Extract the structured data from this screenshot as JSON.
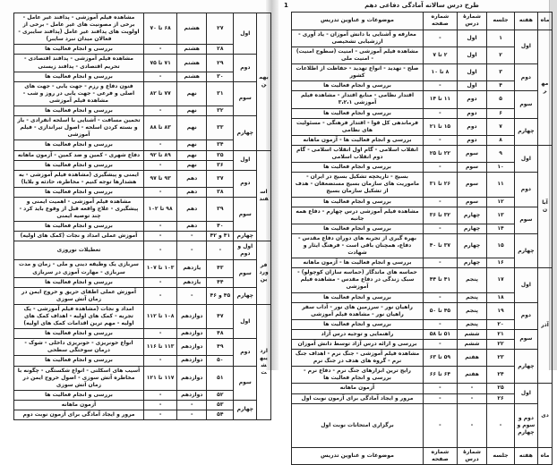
{
  "document_title": "طرح درس سالانه آمادگی دفاعی دهم",
  "page_marker": "1",
  "columns": [
    "ماه",
    "هفته",
    "جلسه",
    "شمارهٔ درس",
    "شماره صفحه",
    "موضوعات و عناوین تدریس"
  ],
  "pages": [
    {
      "side": "right",
      "has_title": true,
      "has_header": true,
      "has_footer_header": true,
      "rows": [
        {
          "month": "مهر",
          "month_span": 8,
          "week": "اول",
          "week_span": 2,
          "session": "۱",
          "lesson": "اول",
          "pages": "-",
          "topic": "معارفه و آشنایی با دانش آموزان - یاد آوری - ارزشیابی تشخیصی"
        },
        {
          "session": "۲",
          "lesson": "اول",
          "pages": "۲ تا ۷",
          "topic": "مشاهده فیلم آموزشی - امنیت (سطوح امنیت) - امنیت ملی"
        },
        {
          "week": "دوم",
          "week_span": 2,
          "session": "۳",
          "lesson": "اول",
          "pages": "۸ تا ۱۰",
          "topic": "صلح - تهدید - انواع تهدید - حفاظت از اطلاعات کشور"
        },
        {
          "session": "۴",
          "lesson": "اول",
          "pages": "-",
          "topic": "بررسی و انجام فعالیت ها"
        },
        {
          "week": "سوم",
          "week_span": 2,
          "session": "۵",
          "lesson": "دوم",
          "pages": "۱۱ تا ۱۴",
          "topic": "اقتدار نظامی - منابع اقتدار - مشاهده فیلم آموزشی ۳،۲،۱"
        },
        {
          "session": "۶",
          "lesson": "دوم",
          "pages": "-",
          "topic": "بررسی و انجام فعالیت ها"
        },
        {
          "week": "چهارم",
          "week_span": 2,
          "session": "۷",
          "lesson": "دوم",
          "pages": "۱۵ تا ۲۱",
          "topic": "فرماندهی کل قوا - اقتدار فرهنگی - مسئولیت های نظامی"
        },
        {
          "session": "۸",
          "lesson": "دوم",
          "pages": "-",
          "topic": "بررسی و انجام فعالیت ها - آزمون ماهانه"
        },
        {
          "month": "آبان",
          "month_span": 8,
          "week": "اول",
          "week_span": 2,
          "session": "۹",
          "lesson": "سوم",
          "pages": "۲۲ تا ۲۵",
          "topic": "انقلاب اسلامی - گام اول انقلاب اسلامی - گام دوم انقلاب اسلامی"
        },
        {
          "session": "۱۰",
          "lesson": "سوم",
          "pages": "-",
          "topic": "بررسی و انجام فعالیت ها"
        },
        {
          "week": "دوم",
          "week_span": 2,
          "session": "۱۱",
          "lesson": "سوم",
          "pages": "۲۶ تا ۳۱",
          "topic": "بسیج - تاریخچه تشکیل بسیج در ایران - ماموریت های سازمان بسیج مستضعفان - هدف از تشکیل سازمان بسیج"
        },
        {
          "session": "۱۲",
          "lesson": "سوم",
          "pages": "-",
          "topic": "بررسی و انجام فعالیت ها"
        },
        {
          "week": "سوم",
          "week_span": 2,
          "session": "۱۳",
          "lesson": "چهارم",
          "pages": "۳۲ تا ۳۶",
          "topic": "مشاهده فیلم آموزشی درس چهارم - دفاع همه جانبه"
        },
        {
          "session": "۱۴",
          "lesson": "چهارم",
          "pages": "-",
          "topic": "بررسی و انجام فعالیت ها"
        },
        {
          "week": "چهارم",
          "week_span": 2,
          "session": "۱۵",
          "lesson": "چهارم",
          "pages": "۳۷ تا ۴۰",
          "topic": "بهره گیری از تجربه های دوران دفاع مقدس - دفاع، همچنان باقی است - فرهنگ ایثار و شهادت"
        },
        {
          "session": "۱۶",
          "lesson": "چهارم",
          "pages": "-",
          "topic": "بررسی و انجام فعالیت ها - آزمون ماهانه"
        },
        {
          "month": "آذر",
          "month_span": 8,
          "week": "اول",
          "week_span": 2,
          "session": "۱۷",
          "lesson": "پنجم",
          "pages": "۴۱ تا ۴۴",
          "topic": "حماسه های ماندگار (حماسه سازان کوچولو) - سبک زندگی در دفاع مقدس - مشاهده فیلم آموزشی"
        },
        {
          "session": "۱۸",
          "lesson": "پنجم",
          "pages": "-",
          "topic": "بررسی و انجام فعالیت ها"
        },
        {
          "week": "دوم",
          "week_span": 2,
          "session": "۱۹",
          "lesson": "پنجم",
          "pages": "۴۵ تا ۵۰",
          "topic": "راهیان نور - سرزمین های نور - آداب سفر راهیان نور - مشاهده فیلم آموزشی"
        },
        {
          "session": "۲۰",
          "lesson": "پنجم",
          "pages": "-",
          "topic": "بررسی و انجام فعالیت ها"
        },
        {
          "week": "سوم",
          "week_span": 2,
          "session": "۲۱",
          "lesson": "ششم",
          "pages": "۵۱ تا ۵۸",
          "topic": "راهنمایی و توجیه درس آزاد"
        },
        {
          "session": "۲۲",
          "lesson": "ششم",
          "pages": "-",
          "topic": "بررسی و ارائه درس آزاد توسط دانش آموزان"
        },
        {
          "week": "چهارم",
          "week_span": 2,
          "session": "۲۳",
          "lesson": "هفتم",
          "pages": "۵۹ تا ۶۳",
          "topic": "مشاهده فیلم آموزشی - جنگ نرم - اهداف جنگ نرم - گروه های هدف در جنگ نرم"
        },
        {
          "session": "۲۴",
          "lesson": "هفتم",
          "pages": "۶۴ تا ۶۶",
          "topic": "رایج ترین ابزارهای جنگ نرم - دفاع نرم - بررسی و انجام فعالیت ها"
        },
        {
          "month": "دی",
          "month_span": 3,
          "week": "اول",
          "week_span": 2,
          "session": "۲۵",
          "lesson": "-",
          "pages": "-",
          "topic": "آزمون ماهانه"
        },
        {
          "session": "۲۶",
          "lesson": "-",
          "pages": "-",
          "topic": "مرور و ایجاد آمادگی برای آزمون نوبت اول"
        },
        {
          "week": "دوم و سوم و چهارم",
          "week_span": 1,
          "session": "-",
          "lesson": "-",
          "pages": "-",
          "topic": "برگزاری امتحانات نوبت اول",
          "size": "tall"
        }
      ]
    },
    {
      "side": "left",
      "has_title": false,
      "has_header": false,
      "has_footer_header": false,
      "rows": [
        {
          "month": "بهمن",
          "month_span": 8,
          "week": "اول",
          "week_span": 2,
          "session": "۲۷",
          "lesson": "هشتم",
          "pages": "۶۸ تا ۷۰",
          "topic": "مشاهده فیلم آموزشی - پدافند غیر عامل - برخی از مصونیت های غیر عامل - برخی از اولویت های پدافند غیر عامل (پدافند سایبری - فعالان میدان نبرد سایبر)"
        },
        {
          "session": "۲۸",
          "lesson": "هشتم",
          "pages": "-",
          "topic": "بررسی و انجام فعالیت ها"
        },
        {
          "week": "دوم",
          "week_span": 2,
          "session": "۲۹",
          "lesson": "هشتم",
          "pages": "۷۱ تا ۷۵",
          "topic": "مشاهده فیلم آموزشی - پدافند اقتصادی - تحریم اقتصادی - پدافند زیستی"
        },
        {
          "session": "۳۰",
          "lesson": "هشتم",
          "pages": "-",
          "topic": "بررسی و انجام فعالیت ها"
        },
        {
          "week": "سوم",
          "week_span": 2,
          "session": "۳۱",
          "lesson": "نهم",
          "pages": "۷۷ تا ۸۲",
          "topic": "فنون دفاع و رزم - جهت یابی - جهت های اصلی و فرعی - جهت یابی در روز و شب - مشاهده فیلم آموزشی"
        },
        {
          "session": "۳۲",
          "lesson": "نهم",
          "pages": "-",
          "topic": "بررسی و انجام فعالیت ها"
        },
        {
          "week": "چهارم",
          "week_span": 2,
          "session": "۳۳",
          "lesson": "نهم",
          "pages": "۸۳ تا ۸۸",
          "topic": "تخمین مسافت - آشنایی با اسلحه انفرادی - باز و بسته کردن اسلحه - اصول تیراندازی - فیلم آموزشی"
        },
        {
          "session": "۳۴",
          "lesson": "نهم",
          "pages": "-",
          "topic": "بررسی و انجام فعالیت ها"
        },
        {
          "month": "اسفند",
          "month_span": 7,
          "week": "اول",
          "week_span": 2,
          "session": "۳۵",
          "lesson": "نهم",
          "pages": "۸۹ تا ۹۲",
          "topic": "دفاع شهری - کمین و ضد کمین - آزمون ماهانه"
        },
        {
          "session": "۳۶",
          "lesson": "نهم",
          "pages": "-",
          "topic": "بررسی و انجام فعالیت ها"
        },
        {
          "week": "دوم",
          "week_span": 2,
          "session": "۳۷",
          "lesson": "دهم",
          "pages": "۹۳ تا ۹۷",
          "topic": "ایمنی و پیشگیری (مشاهده فیلم آموزشی - به هشدارها توجه کنیم - مخاطره، حادثه و بلایا)"
        },
        {
          "session": "۳۸",
          "lesson": "دهم",
          "pages": "-",
          "topic": "بررسی و انجام فعالیت ها"
        },
        {
          "week": "سوم",
          "week_span": 2,
          "session": "۳۹",
          "lesson": "دهم",
          "pages": "۹۸ تا ۱۰۲",
          "topic": "مشاهده فیلم آموزشی - اهمیت ایمنی و پیشگیری - علاج واقعه قبل از وقوع باید کرد - چند توصیه ایمنی"
        },
        {
          "session": "۴۰",
          "lesson": "دهم",
          "pages": "-",
          "topic": "بررسی و انجام فعالیت ها"
        },
        {
          "week": "چهارم",
          "week_span": 1,
          "session": "۴۱ و ۴۲",
          "lesson": "-",
          "pages": "-",
          "topic": "آموزش عملی امداد و نجات (کمک های اولیه)"
        },
        {
          "month": "فروردین",
          "month_span": 4,
          "week": "اول و دوم",
          "week_span": 1,
          "session": "-",
          "lesson": "-",
          "pages": "-",
          "topic": "تعطیلات نوروزی",
          "size": "med"
        },
        {
          "week": "سوم",
          "week_span": 2,
          "session": "۴۳",
          "lesson": "یازدهم",
          "pages": "۱۰۳ تا ۱۰۷",
          "topic": "سربازی یک وظیفه دینی و ملی - زمان و مدت سربازی - مهارت آموزی در سربازی"
        },
        {
          "session": "۴۴",
          "lesson": "یازدهم",
          "pages": "-",
          "topic": "بررسی و انجام فعالیت ها"
        },
        {
          "week": "چهارم",
          "week_span": 1,
          "session": "۴۵ و ۴۶",
          "lesson": "-",
          "pages": "-",
          "topic": "آموزش عملی اطفای حریق و خروج ایمن در زمان آتش سوزی"
        },
        {
          "month": "اردیبهشت",
          "month_span": 8,
          "week": "اول",
          "week_span": 2,
          "session": "۴۷",
          "lesson": "دوازدهم",
          "pages": "۱۰۸ تا ۱۱۲",
          "topic": "امداد و نجات (مشاهده فیلم آموزشی - یک تجربه - کمک های اولیه - اهداف کمک های اولیه - مهم ترین اقدامات کمک های اولیه)"
        },
        {
          "session": "۴۸",
          "lesson": "دوازدهم",
          "pages": "-",
          "topic": "بررسی و انجام فعالیت ها"
        },
        {
          "week": "دوم",
          "week_span": 2,
          "session": "۴۹",
          "lesson": "دوازدهم",
          "pages": "۱۱۳ تا ۱۱۶",
          "topic": "انواع خونریزی - خونریزی داخلی - شوک - درمان سوختگی سطحی"
        },
        {
          "session": "۵۰",
          "lesson": "دوازدهم",
          "pages": "-",
          "topic": "بررسی و انجام فعالیت ها"
        },
        {
          "week": "سوم",
          "week_span": 2,
          "session": "۵۱",
          "lesson": "دوازدهم",
          "pages": "۱۱۷ تا ۱۲۱",
          "topic": "آسیب های اسکلتی - انواع شکستگی - چگونه با مخاطره آتش سوزی - اصول خروج ایمن در زمان آتش سوزی"
        },
        {
          "session": "۵۲",
          "lesson": "دوازدهم",
          "pages": "-",
          "topic": "بررسی و انجام فعالیت ها"
        },
        {
          "week": "چهارم",
          "week_span": 2,
          "session": "۵۳",
          "lesson": "-",
          "pages": "-",
          "topic": "آزمون ماهانه"
        },
        {
          "session": "۵۴",
          "lesson": "-",
          "pages": "-",
          "topic": "مرور و ایجاد آمادگی برای آزمون نوبت دوم"
        }
      ]
    }
  ]
}
